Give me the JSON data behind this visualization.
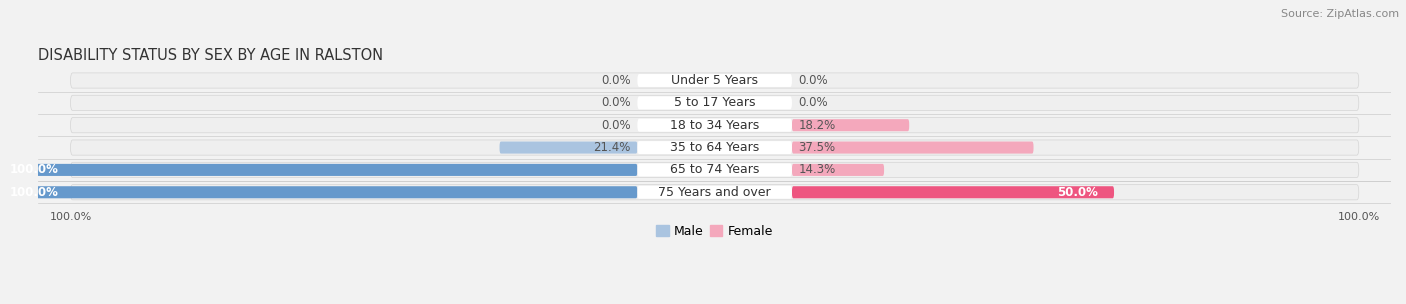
{
  "title": "DISABILITY STATUS BY SEX BY AGE IN RALSTON",
  "source": "Source: ZipAtlas.com",
  "categories": [
    "Under 5 Years",
    "5 to 17 Years",
    "18 to 34 Years",
    "35 to 64 Years",
    "65 to 74 Years",
    "75 Years and over"
  ],
  "male_values": [
    0.0,
    0.0,
    0.0,
    21.4,
    100.0,
    100.0
  ],
  "female_values": [
    0.0,
    0.0,
    18.2,
    37.5,
    14.3,
    50.0
  ],
  "male_color_light": "#aac4e0",
  "male_color_full": "#6699cc",
  "female_color_light": "#f4a8bc",
  "female_color_full": "#ee5580",
  "bar_bg_color": "#e6e6e6",
  "row_bg_color": "#f0f0f0",
  "row_border_color": "#d0d0d0",
  "title_fontsize": 10.5,
  "label_fontsize": 9,
  "value_fontsize": 8.5,
  "tick_fontsize": 8,
  "source_fontsize": 8,
  "legend_male": "Male",
  "legend_female": "Female"
}
